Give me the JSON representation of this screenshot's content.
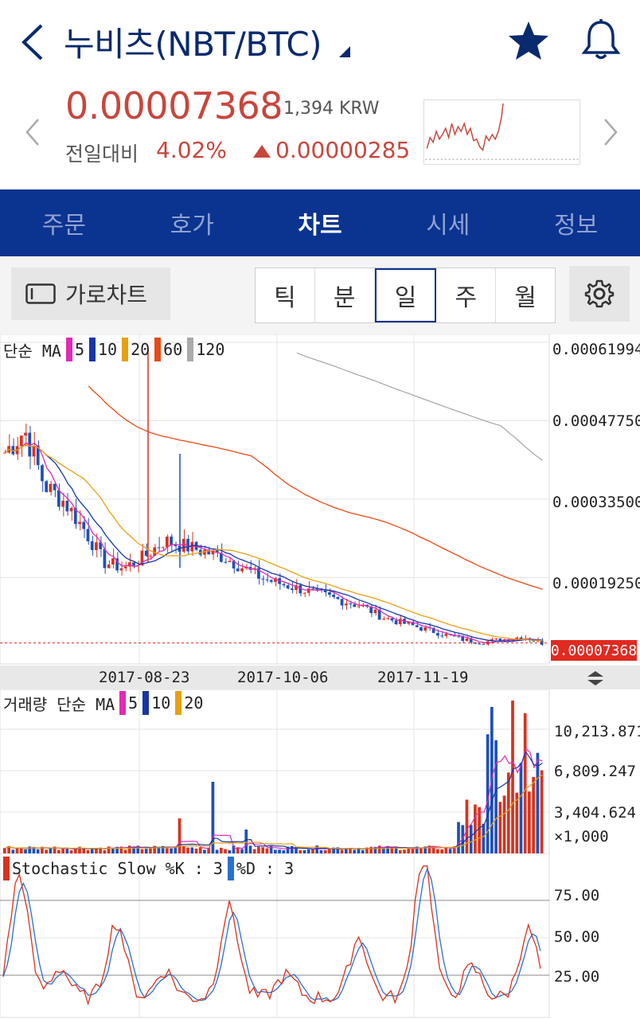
{
  "header": {
    "title": "누비츠(NBT/BTC)",
    "price": "0.00007368",
    "price_krw": "1,394 KRW",
    "change_label": "전일대비",
    "change_pct": "4.02%",
    "change_abs": "0.00000285",
    "accent": "#c8463c"
  },
  "tabs": [
    "주문",
    "호가",
    "차트",
    "시세",
    "정보"
  ],
  "active_tab": "차트",
  "controls": {
    "landscape_label": "가로차트",
    "periods": [
      "틱",
      "분",
      "일",
      "주",
      "월"
    ],
    "active_period": "일"
  },
  "price_chart": {
    "legend_label": "단순 MA",
    "ma": [
      {
        "label": "5",
        "color": "#e02bb5"
      },
      {
        "label": "10",
        "color": "#1636a8"
      },
      {
        "label": "20",
        "color": "#e8a010"
      },
      {
        "label": "60",
        "color": "#e84a18"
      },
      {
        "label": "120",
        "color": "#aaaaaa"
      }
    ],
    "y_labels": [
      "0.00061994",
      "0.00047750",
      "0.00033500",
      "0.00019250"
    ],
    "last_price": "0.00007368",
    "dates": [
      "2017-08-23",
      "2017-10-06",
      "2017-11-19"
    ]
  },
  "volume_chart": {
    "legend_label": "거래량 단순 MA",
    "ma": [
      {
        "label": "5",
        "color": "#e02bb5"
      },
      {
        "label": "10",
        "color": "#1636a8"
      },
      {
        "label": "20",
        "color": "#e8a010"
      }
    ],
    "y_labels": [
      "10,213.871",
      "6,809.247",
      "3,404.624",
      "×1,000"
    ]
  },
  "stoch_chart": {
    "k_label": "Stochastic Slow %K : 3",
    "d_label": "%D : 3",
    "k_color": "#d8321e",
    "d_color": "#2a70d0",
    "y_labels": [
      "75.00",
      "50.00",
      "25.00"
    ]
  },
  "chart_data": {
    "type": "candlestick",
    "x_labels": [
      "2017-08-23",
      "2017-10-06",
      "2017-11-19"
    ],
    "ylim": [
      7.368e-05,
      0.00061994
    ],
    "y_ticks": [
      0.00061994,
      0.0004775,
      0.000335,
      0.0001925
    ],
    "last_value": 7.368e-05,
    "close_trend": [
      0.00042,
      0.00046,
      0.00036,
      0.00033,
      0.00028,
      0.00022,
      0.00021,
      0.00023,
      0.00026,
      0.00025,
      0.00024,
      0.00023,
      0.00021,
      0.00019,
      0.00018,
      0.00017,
      0.00016,
      0.00015,
      0.00014,
      0.00012,
      0.00011,
      0.0001,
      9e-05,
      8e-05,
      7.5e-05,
      8e-05,
      8.5e-05,
      7.368e-05
    ],
    "volume_ylim": [
      0,
      10213.871
    ],
    "stoch_ticks": [
      25,
      50,
      75
    ]
  }
}
